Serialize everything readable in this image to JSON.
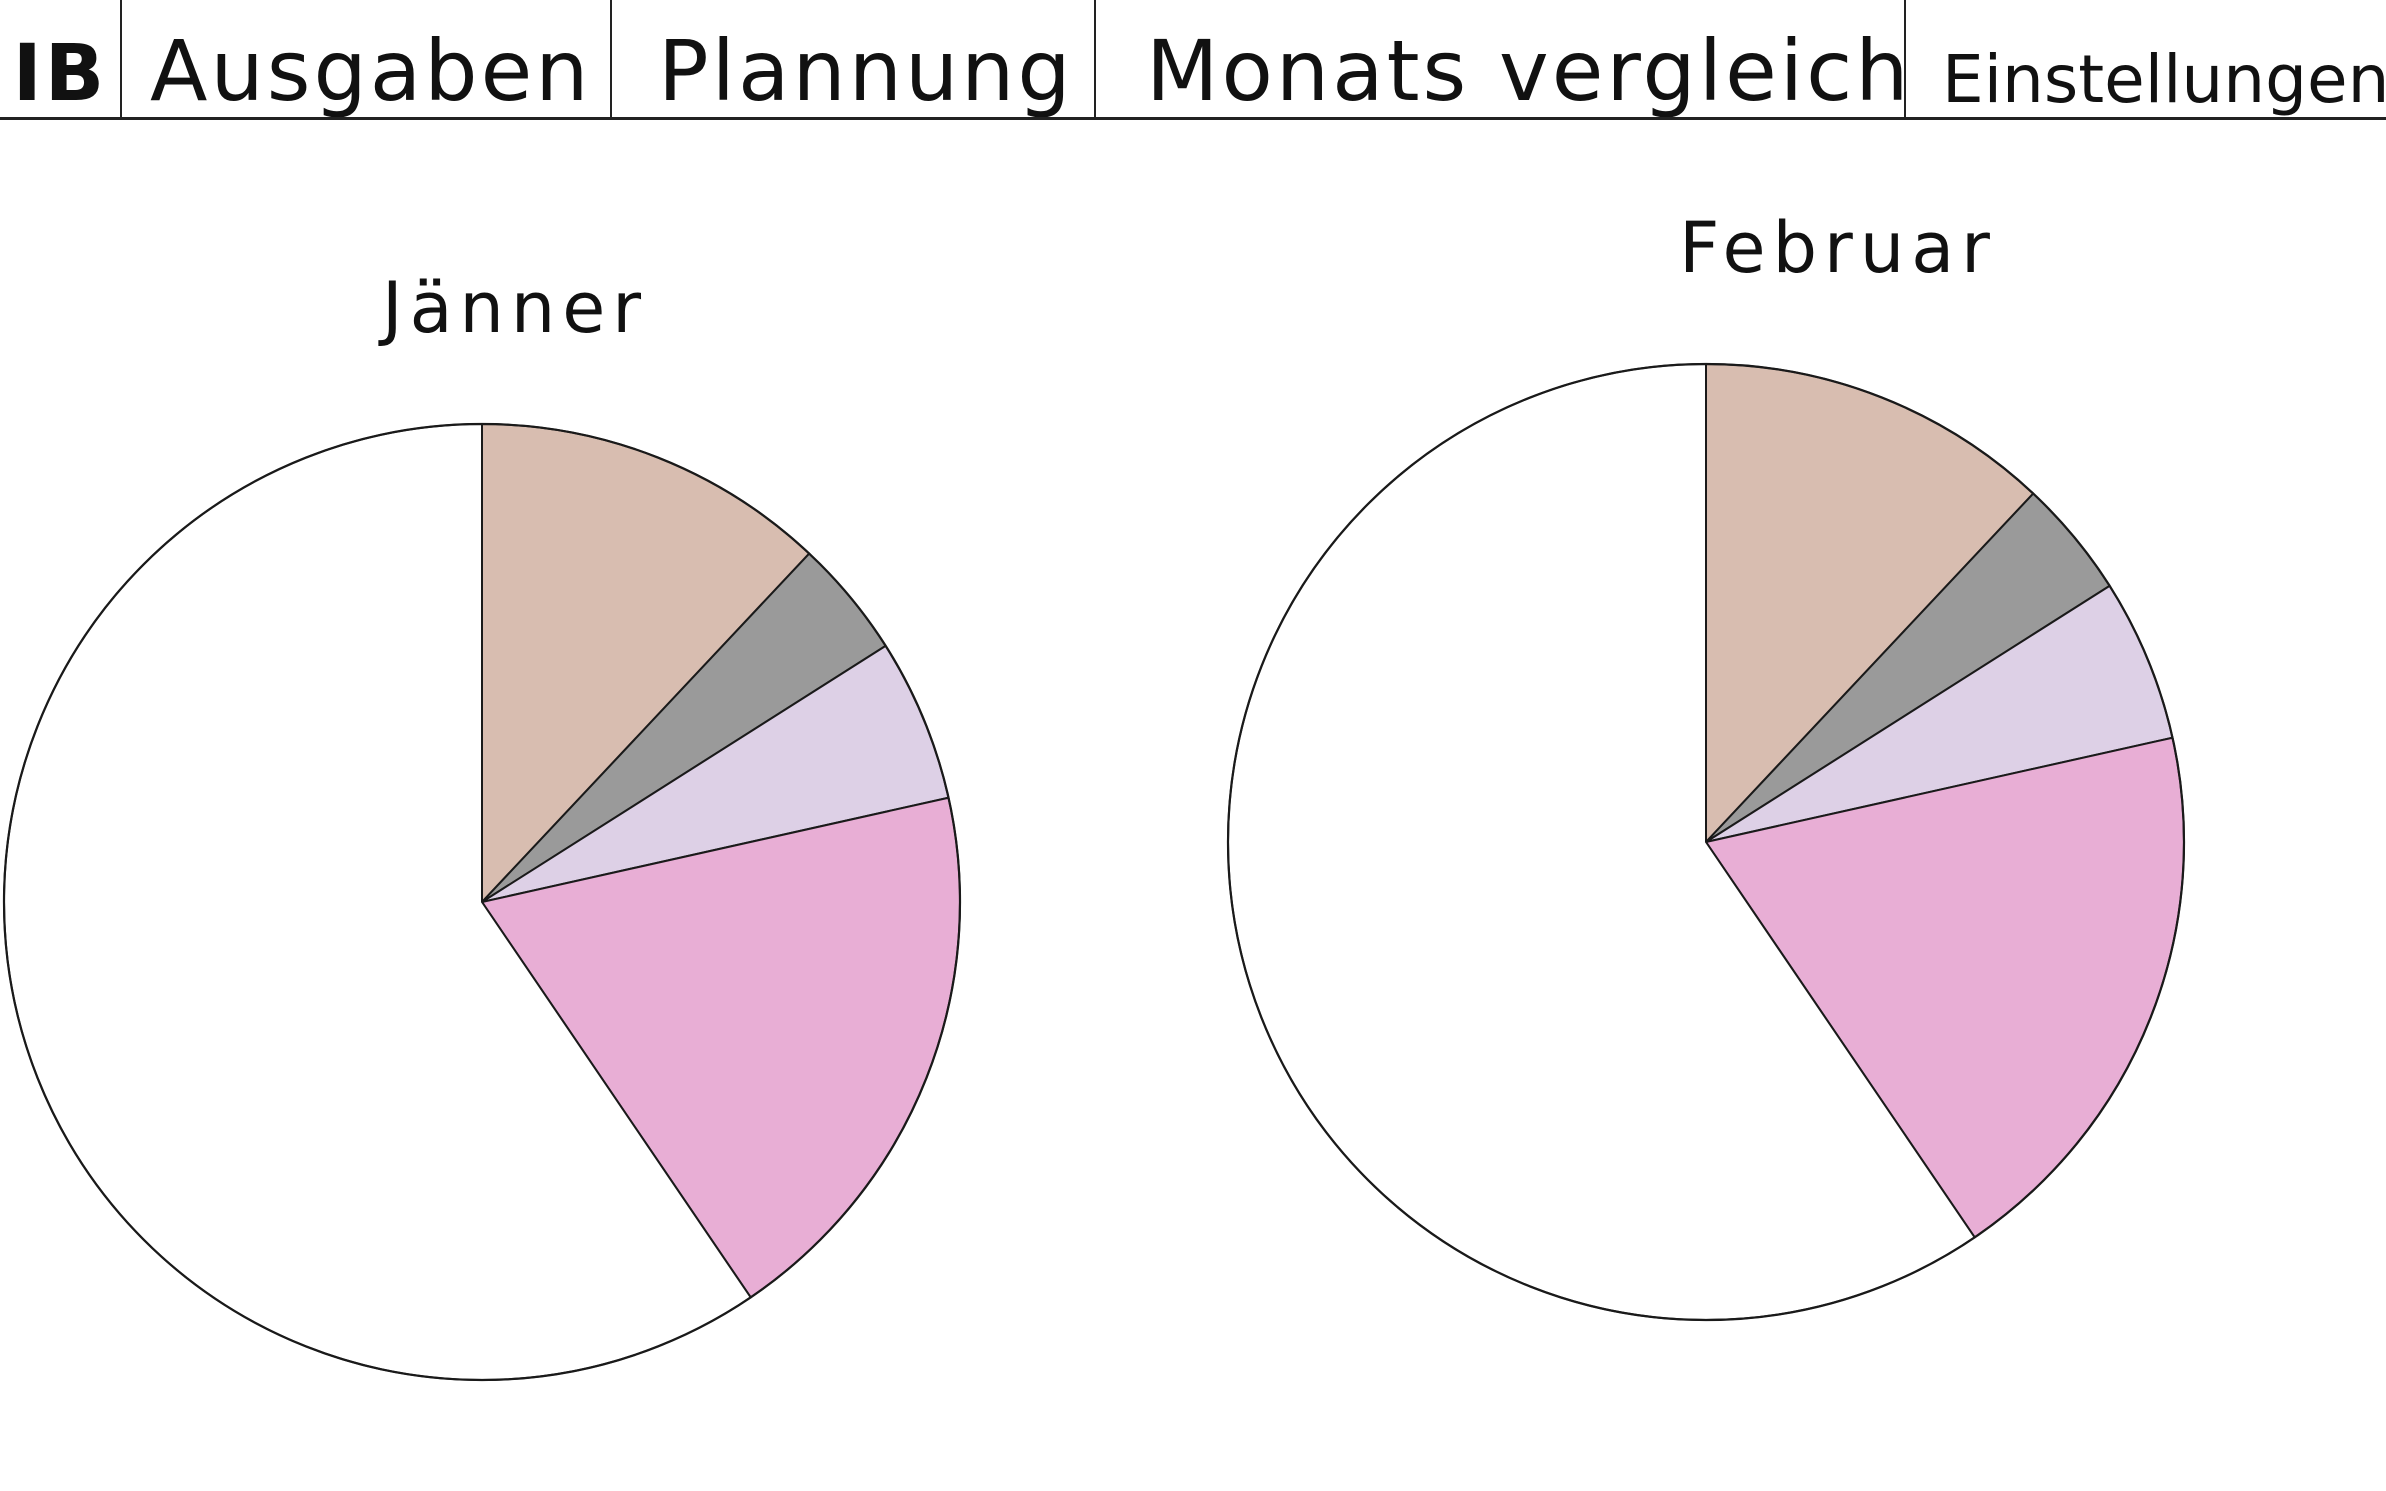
{
  "nav": {
    "logo": "IB",
    "tabs": [
      {
        "label": "Ausgaben"
      },
      {
        "label": "Plannung"
      },
      {
        "label": "Monats vergleich"
      },
      {
        "label": "Einstellungen"
      }
    ]
  },
  "chart_data": [
    {
      "type": "pie",
      "title": "Jänner",
      "values": [
        12,
        4,
        5.5,
        19,
        59.5
      ],
      "colors": [
        "#d8bdb0",
        "#9a9a9a",
        "#ddd0e6",
        "#e8aed5",
        "#ffffff"
      ]
    },
    {
      "type": "pie",
      "title": "Februar",
      "values": [
        12,
        4,
        5.5,
        19,
        59.5
      ],
      "colors": [
        "#d8bdb0",
        "#9a9a9a",
        "#ddd0e6",
        "#e8aed5",
        "#ffffff"
      ]
    }
  ]
}
